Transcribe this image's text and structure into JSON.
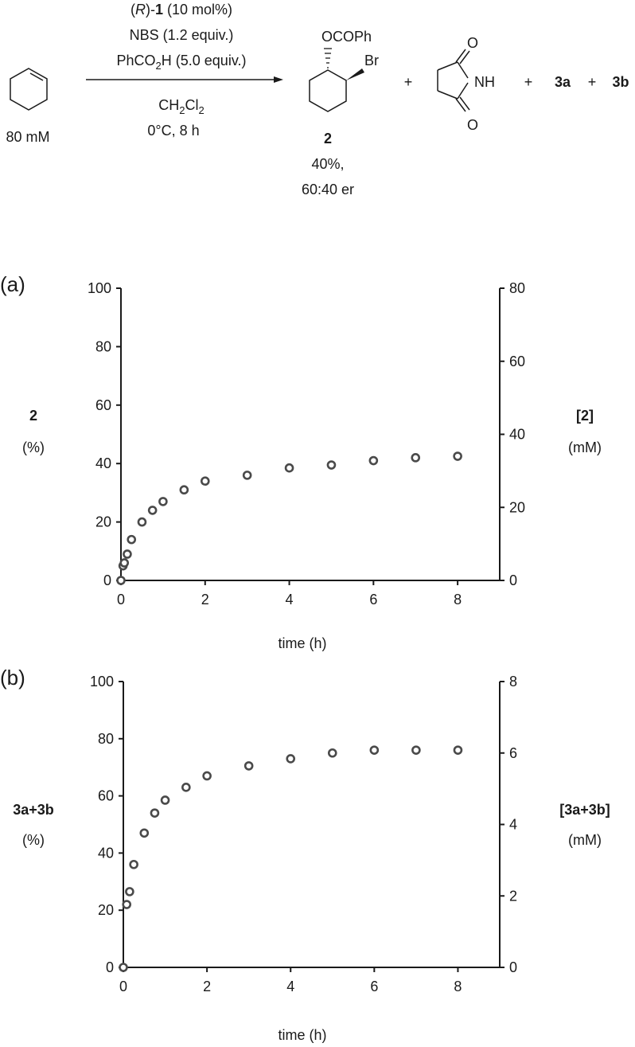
{
  "scheme": {
    "reagents": {
      "r1_a": "(",
      "r1_b": "R",
      "r1_c": ")-",
      "r1_d": "1",
      "r1_e": " (10 mol%)",
      "r2": "NBS (1.2 equiv.)",
      "r3_a": "PhCO",
      "r3_b": "2",
      "r3_c": "H (5.0 equiv.)"
    },
    "conditions": {
      "solvent_a": "CH",
      "solvent_b": "2",
      "solvent_c": "Cl",
      "solvent_d": "2",
      "temp_time": "0°C, 8 h"
    },
    "substrate_conc": "80 mM",
    "product": {
      "ocoph": "OCOPh",
      "br": "Br",
      "number": "2",
      "yield": "40%,",
      "er": "60:40 er"
    },
    "succinimide": {
      "o_top": "O",
      "o_bottom": "O",
      "nh": "NH"
    },
    "plus": "+",
    "byproduct_a": "3a",
    "byproduct_b": "3b"
  },
  "chart_data": [
    {
      "type": "scatter",
      "panel_label": "(a)",
      "xlabel": "time (h)",
      "ylabel_left_a": "2",
      "ylabel_left_b": "(%)",
      "ylabel_right_a": "[",
      "ylabel_right_b": "2",
      "ylabel_right_c": "]",
      "ylabel_right_d": "(mM)",
      "xlim": [
        0,
        9
      ],
      "ylim": [
        0,
        100
      ],
      "ylim_right": [
        0,
        80
      ],
      "xticks": [
        0,
        2,
        4,
        6,
        8
      ],
      "yticks": [
        0,
        20,
        40,
        60,
        80,
        100
      ],
      "yticks_right": [
        0,
        20,
        40,
        60,
        80
      ],
      "grid": false,
      "x": [
        0,
        0.05,
        0.08,
        0.15,
        0.25,
        0.5,
        0.75,
        1,
        1.5,
        2,
        3,
        4,
        5,
        6,
        7,
        8
      ],
      "y": [
        0,
        5,
        6,
        9,
        14,
        20,
        24,
        27,
        31,
        34,
        36,
        38.5,
        39.5,
        41,
        42,
        42.5
      ]
    },
    {
      "type": "scatter",
      "panel_label": "(b)",
      "xlabel": "time (h)",
      "ylabel_left_a": "3a+3b",
      "ylabel_left_b": "(%)",
      "ylabel_right_a": "[3a+3b]",
      "ylabel_right_b": "(mM)",
      "xlim": [
        0,
        9
      ],
      "ylim": [
        0,
        100
      ],
      "ylim_right": [
        0,
        8
      ],
      "xticks": [
        0,
        2,
        4,
        6,
        8
      ],
      "yticks": [
        0,
        20,
        40,
        60,
        80,
        100
      ],
      "yticks_right": [
        0,
        2,
        4,
        6,
        8
      ],
      "grid": false,
      "x": [
        0,
        0.08,
        0.15,
        0.25,
        0.5,
        0.75,
        1,
        1.5,
        2,
        3,
        4,
        5,
        6,
        7,
        8
      ],
      "y": [
        0,
        22,
        26.5,
        36,
        47,
        54,
        58.5,
        63,
        67,
        70.5,
        73,
        75,
        76,
        76,
        76
      ]
    }
  ]
}
